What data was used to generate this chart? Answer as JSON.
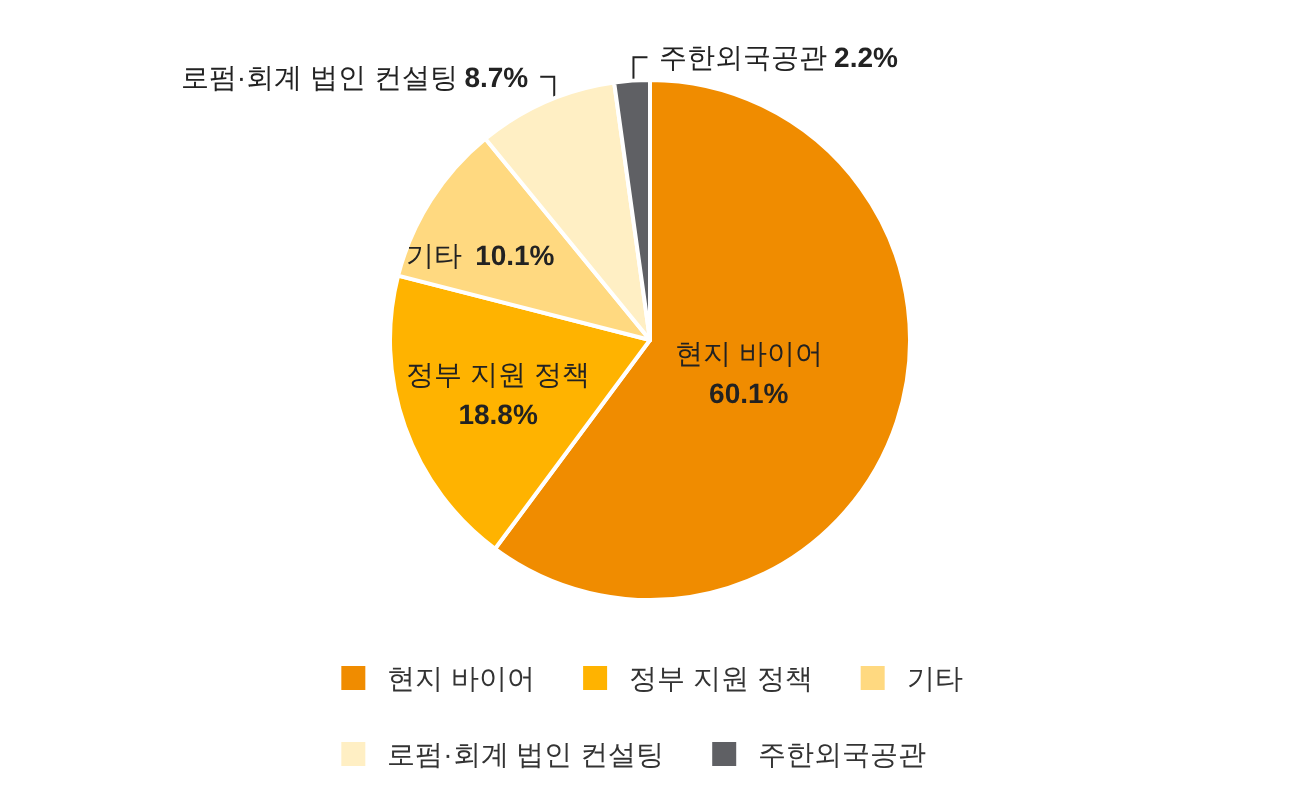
{
  "chart_data": {
    "type": "pie",
    "categories": [
      "현지 바이어",
      "정부 지원 정책",
      "기타",
      "로펌·회계 법인 컨설팅",
      "주한외국공관"
    ],
    "values": [
      60.1,
      18.8,
      10.1,
      8.7,
      2.2
    ],
    "value_labels": [
      "60.1%",
      "18.8%",
      "10.1%",
      "8.7%",
      "2.2%"
    ],
    "colors": [
      "#f08c00",
      "#ffb300",
      "#ffd980",
      "#ffefc4",
      "#5f6064"
    ],
    "legend": "bottom"
  }
}
